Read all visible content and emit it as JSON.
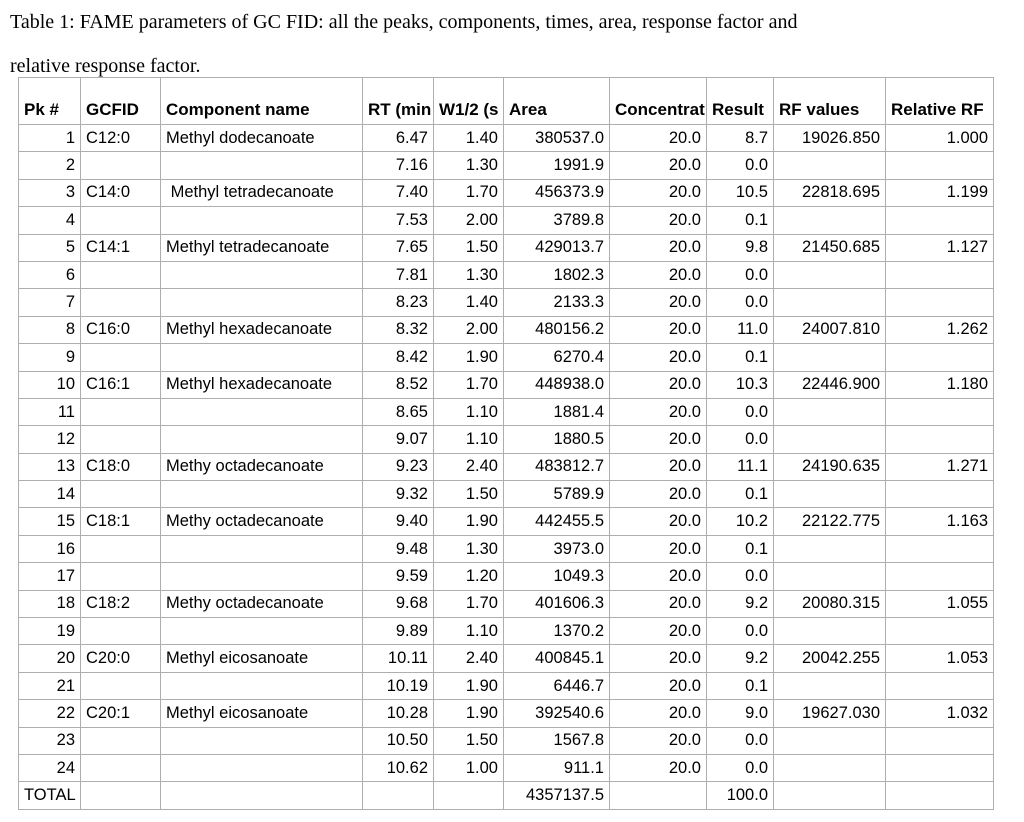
{
  "caption": {
    "lines": [
      "Table 1: FAME parameters of GC FID: all the peaks, components, times, area, response factor and",
      "relative response factor."
    ]
  },
  "colors": {
    "background": "#ffffff",
    "text": "#000000",
    "grid_border": "#aeaeae"
  },
  "table": {
    "columns": [
      {
        "key": "pk",
        "label": "Pk #",
        "align": "right"
      },
      {
        "key": "gcfid",
        "label": "GCFID",
        "align": "left"
      },
      {
        "key": "component",
        "label": "Component name",
        "align": "left"
      },
      {
        "key": "rt",
        "label": "RT (min",
        "align": "right"
      },
      {
        "key": "w12",
        "label": "W1/2 (s",
        "align": "right"
      },
      {
        "key": "area",
        "label": "Area",
        "align": "right"
      },
      {
        "key": "conc",
        "label": "Concentrat",
        "align": "right"
      },
      {
        "key": "result",
        "label": "Result",
        "align": "right"
      },
      {
        "key": "rf",
        "label": "RF values",
        "align": "right"
      },
      {
        "key": "rrf",
        "label": "Relative RF",
        "align": "right"
      }
    ],
    "rows": [
      [
        "1",
        "C12:0",
        "Methyl dodecanoate",
        "6.47",
        "1.40",
        "380537.0",
        "20.0",
        "8.7",
        "19026.850",
        "1.000"
      ],
      [
        "2",
        "",
        "",
        "7.16",
        "1.30",
        "1991.9",
        "20.0",
        "0.0",
        "",
        ""
      ],
      [
        "3",
        "C14:0",
        " Methyl tetradecanoate",
        "7.40",
        "1.70",
        "456373.9",
        "20.0",
        "10.5",
        "22818.695",
        "1.199"
      ],
      [
        "4",
        "",
        "",
        "7.53",
        "2.00",
        "3789.8",
        "20.0",
        "0.1",
        "",
        ""
      ],
      [
        "5",
        "C14:1",
        "Methyl tetradecanoate",
        "7.65",
        "1.50",
        "429013.7",
        "20.0",
        "9.8",
        "21450.685",
        "1.127"
      ],
      [
        "6",
        "",
        "",
        "7.81",
        "1.30",
        "1802.3",
        "20.0",
        "0.0",
        "",
        ""
      ],
      [
        "7",
        "",
        "",
        "8.23",
        "1.40",
        "2133.3",
        "20.0",
        "0.0",
        "",
        ""
      ],
      [
        "8",
        "C16:0",
        "Methyl hexadecanoate",
        "8.32",
        "2.00",
        "480156.2",
        "20.0",
        "11.0",
        "24007.810",
        "1.262"
      ],
      [
        "9",
        "",
        "",
        "8.42",
        "1.90",
        "6270.4",
        "20.0",
        "0.1",
        "",
        ""
      ],
      [
        "10",
        "C16:1",
        "Methyl hexadecanoate",
        "8.52",
        "1.70",
        "448938.0",
        "20.0",
        "10.3",
        "22446.900",
        "1.180"
      ],
      [
        "11",
        "",
        "",
        "8.65",
        "1.10",
        "1881.4",
        "20.0",
        "0.0",
        "",
        ""
      ],
      [
        "12",
        "",
        "",
        "9.07",
        "1.10",
        "1880.5",
        "20.0",
        "0.0",
        "",
        ""
      ],
      [
        "13",
        "C18:0",
        "Methy octadecanoate",
        "9.23",
        "2.40",
        "483812.7",
        "20.0",
        "11.1",
        "24190.635",
        "1.271"
      ],
      [
        "14",
        "",
        "",
        "9.32",
        "1.50",
        "5789.9",
        "20.0",
        "0.1",
        "",
        ""
      ],
      [
        "15",
        "C18:1",
        "Methy octadecanoate",
        "9.40",
        "1.90",
        "442455.5",
        "20.0",
        "10.2",
        "22122.775",
        "1.163"
      ],
      [
        "16",
        "",
        "",
        "9.48",
        "1.30",
        "3973.0",
        "20.0",
        "0.1",
        "",
        ""
      ],
      [
        "17",
        "",
        "",
        "9.59",
        "1.20",
        "1049.3",
        "20.0",
        "0.0",
        "",
        ""
      ],
      [
        "18",
        "C18:2",
        "Methy octadecanoate",
        "9.68",
        "1.70",
        "401606.3",
        "20.0",
        "9.2",
        "20080.315",
        "1.055"
      ],
      [
        "19",
        "",
        "",
        "9.89",
        "1.10",
        "1370.2",
        "20.0",
        "0.0",
        "",
        ""
      ],
      [
        "20",
        "C20:0",
        "Methyl eicosanoate",
        "10.11",
        "2.40",
        "400845.1",
        "20.0",
        "9.2",
        "20042.255",
        "1.053"
      ],
      [
        "21",
        "",
        "",
        "10.19",
        "1.90",
        "6446.7",
        "20.0",
        "0.1",
        "",
        ""
      ],
      [
        "22",
        "C20:1",
        "Methyl eicosanoate",
        "10.28",
        "1.90",
        "392540.6",
        "20.0",
        "9.0",
        "19627.030",
        "1.032"
      ],
      [
        "23",
        "",
        "",
        "10.50",
        "1.50",
        "1567.8",
        "20.0",
        "0.0",
        "",
        ""
      ],
      [
        "24",
        "",
        "",
        "10.62",
        "1.00",
        "911.1",
        "20.0",
        "0.0",
        "",
        ""
      ],
      [
        "TOTAL",
        "",
        "",
        "",
        "",
        "4357137.5",
        "",
        "100.0",
        "",
        ""
      ]
    ]
  }
}
